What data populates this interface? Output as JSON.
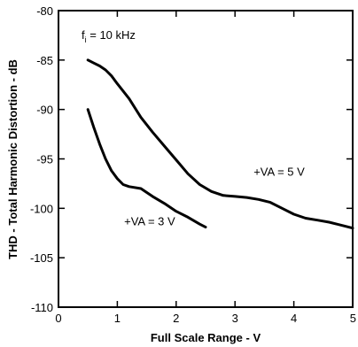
{
  "chart_data": {
    "type": "line",
    "title": "",
    "xlabel": "Full Scale Range - V",
    "ylabel": "THD - Total Harmonic Distortion - dB",
    "xlim": [
      0,
      5
    ],
    "ylim": [
      -110,
      -80
    ],
    "x_ticks": [
      0,
      1,
      2,
      3,
      4,
      5
    ],
    "y_ticks": [
      -80,
      -85,
      -90,
      -95,
      -100,
      -105,
      -110
    ],
    "x_tick_labels": [
      "0",
      "1",
      "2",
      "3",
      "4",
      "5"
    ],
    "y_tick_labels": [
      "-80",
      "-85",
      "-90",
      "-95",
      "-100",
      "-105",
      "-110"
    ],
    "grid": false,
    "condition_label": {
      "prefix": "f",
      "subscript": "i",
      "suffix": " = 10 kHz"
    },
    "series": [
      {
        "name": "+VA = 5 V",
        "points": [
          [
            0.5,
            -85.0
          ],
          [
            0.6,
            -85.3
          ],
          [
            0.7,
            -85.6
          ],
          [
            0.8,
            -86.0
          ],
          [
            0.9,
            -86.6
          ],
          [
            1.0,
            -87.4
          ],
          [
            1.2,
            -88.9
          ],
          [
            1.4,
            -90.8
          ],
          [
            1.6,
            -92.3
          ],
          [
            1.8,
            -93.7
          ],
          [
            2.0,
            -95.1
          ],
          [
            2.2,
            -96.5
          ],
          [
            2.4,
            -97.6
          ],
          [
            2.6,
            -98.3
          ],
          [
            2.8,
            -98.7
          ],
          [
            3.0,
            -98.8
          ],
          [
            3.2,
            -98.9
          ],
          [
            3.4,
            -99.1
          ],
          [
            3.6,
            -99.4
          ],
          [
            3.8,
            -100.0
          ],
          [
            4.0,
            -100.6
          ],
          [
            4.2,
            -101.0
          ],
          [
            4.4,
            -101.2
          ],
          [
            4.6,
            -101.4
          ],
          [
            4.8,
            -101.7
          ],
          [
            5.0,
            -102.0
          ]
        ]
      },
      {
        "name": "+VA = 3 V",
        "points": [
          [
            0.5,
            -90.0
          ],
          [
            0.6,
            -91.8
          ],
          [
            0.7,
            -93.5
          ],
          [
            0.8,
            -95.0
          ],
          [
            0.9,
            -96.2
          ],
          [
            1.0,
            -97.0
          ],
          [
            1.1,
            -97.6
          ],
          [
            1.2,
            -97.8
          ],
          [
            1.4,
            -98.0
          ],
          [
            1.6,
            -98.8
          ],
          [
            1.8,
            -99.5
          ],
          [
            2.0,
            -100.3
          ],
          [
            2.2,
            -100.9
          ],
          [
            2.4,
            -101.6
          ],
          [
            2.5,
            -101.9
          ]
        ]
      }
    ],
    "annotations": [
      {
        "text": "+VA = 5 V",
        "x": 3.75,
        "y": -96.7
      },
      {
        "text": "+VA = 3 V",
        "x": 1.55,
        "y": -101.7
      }
    ]
  }
}
